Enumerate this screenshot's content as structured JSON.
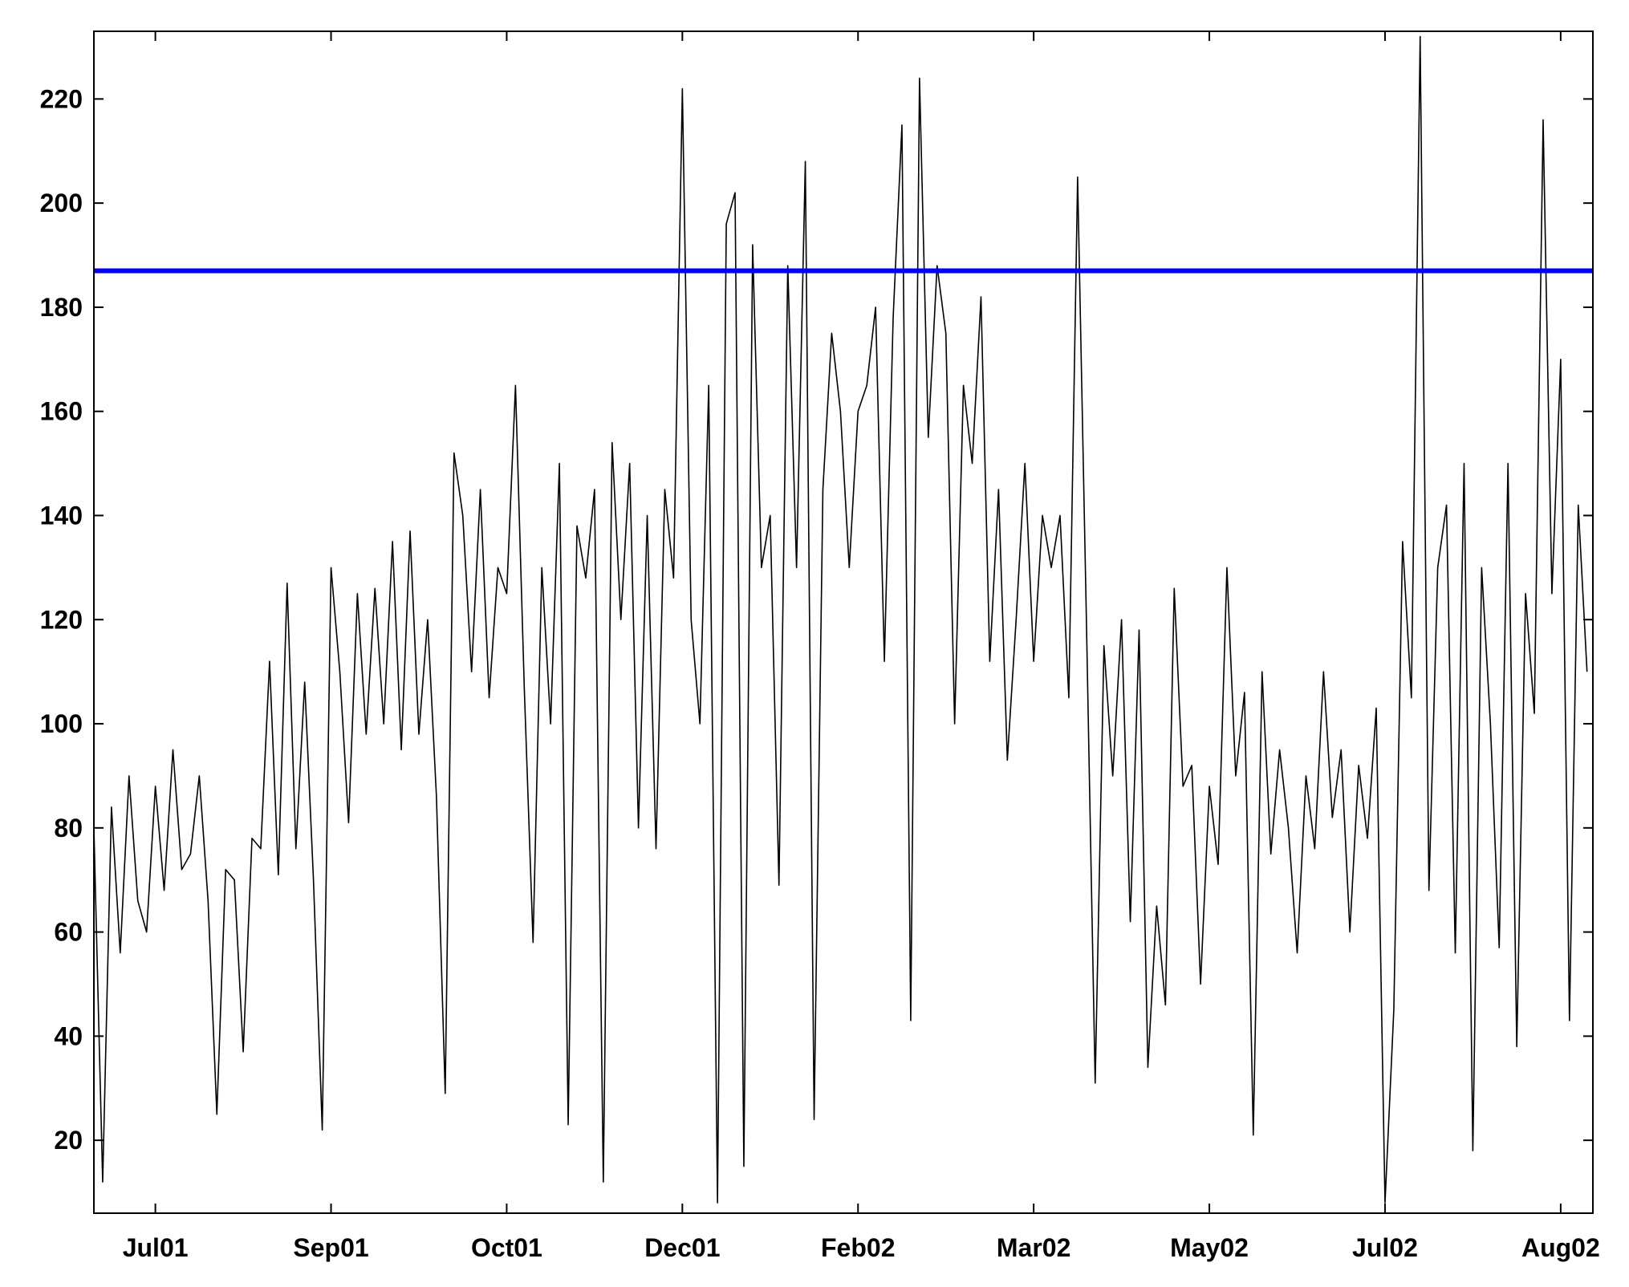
{
  "chart_data": {
    "type": "line",
    "xlim": [
      0,
      512
    ],
    "xticks": [
      {
        "value": 21,
        "label": "Jul01"
      },
      {
        "value": 81,
        "label": "Sep01"
      },
      {
        "value": 141,
        "label": "Oct01"
      },
      {
        "value": 201,
        "label": "Dec01"
      },
      {
        "value": 261,
        "label": "Feb02"
      },
      {
        "value": 321,
        "label": "Mar02"
      },
      {
        "value": 381,
        "label": "May02"
      },
      {
        "value": 441,
        "label": "Jul02"
      },
      {
        "value": 501,
        "label": "Aug02"
      }
    ],
    "ylim": [
      6,
      233
    ],
    "yticks": [
      20,
      40,
      60,
      80,
      100,
      120,
      140,
      160,
      180,
      200,
      220
    ],
    "reference_line": 187,
    "reference_color": "#0000ff",
    "series": [
      {
        "color": "#000000",
        "x": [
          0,
          3,
          6,
          9,
          12,
          15,
          18,
          21,
          24,
          27,
          30,
          33,
          36,
          39,
          42,
          45,
          48,
          51,
          54,
          57,
          60,
          63,
          66,
          69,
          72,
          75,
          78,
          81,
          84,
          87,
          90,
          93,
          96,
          99,
          102,
          105,
          108,
          111,
          114,
          117,
          120,
          123,
          126,
          129,
          132,
          135,
          138,
          141,
          144,
          147,
          150,
          153,
          156,
          159,
          162,
          165,
          168,
          171,
          174,
          177,
          180,
          183,
          186,
          189,
          192,
          195,
          198,
          201,
          204,
          207,
          210,
          213,
          216,
          219,
          222,
          225,
          228,
          231,
          234,
          237,
          240,
          243,
          246,
          249,
          252,
          255,
          258,
          261,
          264,
          267,
          270,
          273,
          276,
          279,
          282,
          285,
          288,
          291,
          294,
          297,
          300,
          303,
          306,
          309,
          312,
          315,
          318,
          321,
          324,
          327,
          330,
          333,
          336,
          339,
          342,
          345,
          348,
          351,
          354,
          357,
          360,
          363,
          366,
          369,
          372,
          375,
          378,
          381,
          384,
          387,
          390,
          393,
          396,
          399,
          402,
          405,
          408,
          411,
          414,
          417,
          420,
          423,
          426,
          429,
          432,
          435,
          438,
          441,
          444,
          447,
          450,
          453,
          456,
          459,
          462,
          465,
          468,
          471,
          474,
          477,
          480,
          483,
          486,
          489,
          492,
          495,
          498,
          501,
          504,
          507,
          510
        ],
        "values": [
          80,
          12,
          84,
          56,
          90,
          66,
          60,
          88,
          68,
          95,
          72,
          75,
          90,
          66,
          25,
          72,
          70,
          37,
          78,
          76,
          112,
          71,
          127,
          76,
          108,
          70,
          22,
          130,
          110,
          81,
          125,
          98,
          126,
          100,
          135,
          95,
          137,
          98,
          120,
          86,
          29,
          152,
          140,
          110,
          145,
          105,
          130,
          125,
          165,
          107,
          58,
          130,
          100,
          150,
          23,
          138,
          128,
          145,
          12,
          154,
          120,
          150,
          80,
          140,
          76,
          145,
          128,
          222,
          120,
          100,
          165,
          8,
          196,
          202,
          15,
          192,
          130,
          140,
          69,
          188,
          130,
          208,
          24,
          145,
          175,
          160,
          130,
          160,
          165,
          180,
          112,
          178,
          215,
          43,
          224,
          155,
          188,
          175,
          100,
          165,
          150,
          182,
          112,
          145,
          93,
          120,
          150,
          112,
          140,
          130,
          140,
          105,
          205,
          120,
          31,
          115,
          90,
          120,
          62,
          118,
          34,
          65,
          46,
          126,
          88,
          92,
          50,
          88,
          73,
          130,
          90,
          106,
          21,
          110,
          75,
          95,
          80,
          56,
          90,
          76,
          110,
          82,
          95,
          60,
          92,
          78,
          103,
          8,
          45,
          135,
          105,
          232,
          68,
          130,
          142,
          56,
          150,
          18,
          130,
          100,
          57,
          150,
          38,
          125,
          102,
          216,
          125,
          170,
          43,
          142,
          110
        ]
      }
    ]
  }
}
